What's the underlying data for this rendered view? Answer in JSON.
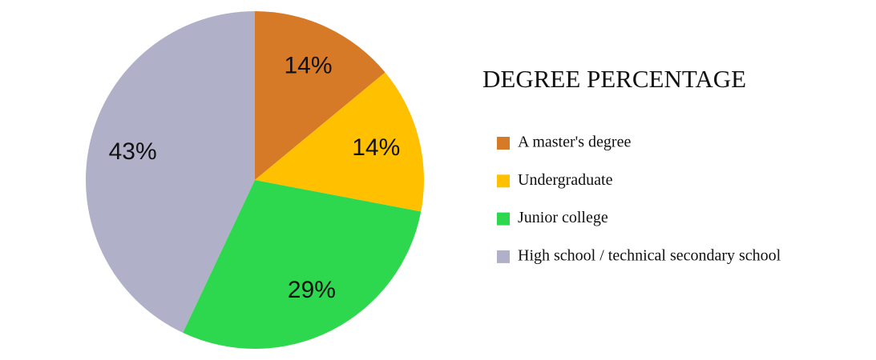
{
  "chart_data": {
    "type": "pie",
    "title": "DEGREE PERCENTAGE",
    "categories": [
      "A master's degree",
      "Undergraduate",
      "Junior college",
      "High school / technical secondary school"
    ],
    "values": [
      14,
      14,
      29,
      43
    ],
    "value_labels": [
      "14%",
      "14%",
      "29%",
      "43%"
    ],
    "colors": [
      "#d77a28",
      "#ffc000",
      "#2dd84e",
      "#b0b0c8"
    ],
    "legend": "right"
  }
}
